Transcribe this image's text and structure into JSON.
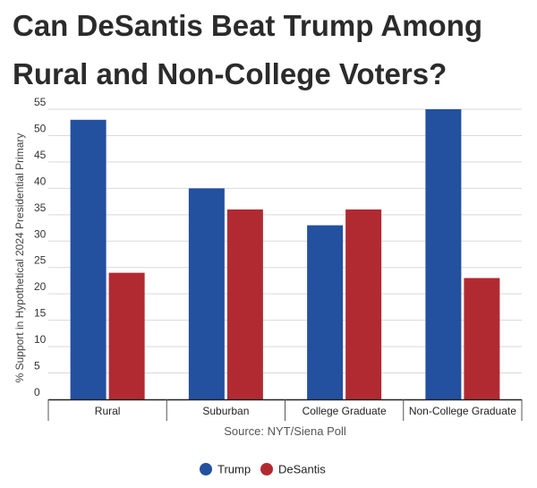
{
  "title": "Can DeSantis Beat Trump Among Rural and Non-College Voters?",
  "source": "Source: NYT/Siena Poll",
  "colors": {
    "Trump": "#2450a0",
    "DeSantis": "#b12a32"
  },
  "chart_data": {
    "type": "bar",
    "title": "Can DeSantis Beat Trump Among Rural and Non-College Voters?",
    "xlabel": "",
    "ylabel": "% Support in Hypothetical 2024 Presidential Primary",
    "ylim": [
      0,
      55
    ],
    "yticks": [
      0,
      5,
      10,
      15,
      20,
      25,
      30,
      35,
      40,
      45,
      50,
      55
    ],
    "grid": true,
    "legend_position": "bottom",
    "categories": [
      "Rural",
      "Suburban",
      "College Graduate",
      "Non-College Graduate"
    ],
    "series": [
      {
        "name": "Trump",
        "values": [
          53,
          40,
          33,
          55
        ]
      },
      {
        "name": "DeSantis",
        "values": [
          24,
          36,
          36,
          23
        ]
      }
    ]
  }
}
